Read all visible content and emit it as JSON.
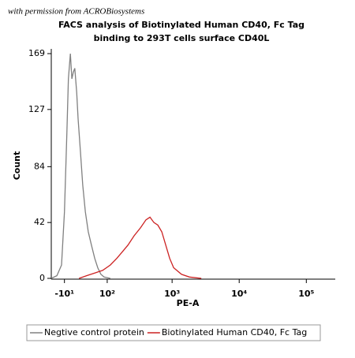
{
  "watermark": "with permission from ACROBiosystems",
  "chart_data": {
    "type": "line",
    "title": "FACS analysis of Biotinylated Human CD40, Fc Tag",
    "subtitle": "binding to 293T cells surface CD40L",
    "x_label": "PE-A",
    "y_label": "Count",
    "xlim": [
      -39,
      270000
    ],
    "ylim": [
      0,
      169
    ],
    "xticks": [
      {
        "value": -10,
        "label": "-10¹"
      },
      {
        "value": 100,
        "label": "10²"
      },
      {
        "value": 1000,
        "label": "10³"
      },
      {
        "value": 10000,
        "label": "10⁴"
      },
      {
        "value": 100000,
        "label": "10⁵"
      }
    ],
    "yticks": [
      0,
      42,
      84,
      127,
      169
    ],
    "legend": "bottom",
    "series": [
      {
        "name": "Negtive control protein",
        "color": "#808080",
        "x": [
          -39,
          -26,
          -16,
          -10,
          -5,
          -2,
          2,
          5,
          8,
          11,
          15,
          18,
          23,
          28,
          34,
          41,
          49,
          58,
          67,
          77,
          88,
          113
        ],
        "values": [
          0,
          2,
          10,
          50,
          110,
          150,
          169,
          150,
          155,
          158,
          140,
          120,
          95,
          70,
          50,
          35,
          25,
          15,
          8,
          3,
          1,
          0
        ]
      },
      {
        "name": "Biotinylated Human CD40, Fc Tag",
        "color": "#cc2222",
        "x": [
          20,
          37,
          58,
          83,
          113,
          144,
          177,
          216,
          269,
          336,
          406,
          466,
          535,
          612,
          702,
          804,
          920,
          1055,
          1383,
          1812,
          2726
        ],
        "values": [
          0,
          2,
          4,
          6,
          10,
          15,
          20,
          25,
          32,
          38,
          44,
          46,
          42,
          40,
          35,
          25,
          15,
          8,
          3,
          1,
          0
        ]
      }
    ]
  }
}
